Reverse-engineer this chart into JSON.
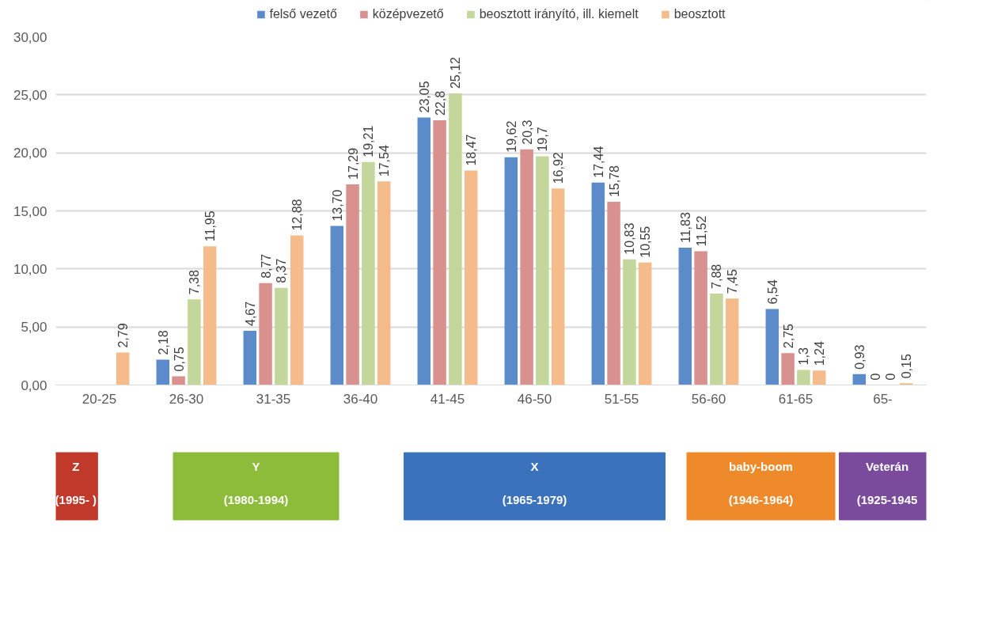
{
  "chart_data": {
    "type": "bar",
    "categories": [
      "20-25",
      "26-30",
      "31-35",
      "36-40",
      "41-45",
      "46-50",
      "51-55",
      "56-60",
      "61-65",
      "65-"
    ],
    "series": [
      {
        "name": "felső vezető",
        "color": "#5b8bc9",
        "values": [
          null,
          2.18,
          4.67,
          13.7,
          23.05,
          19.62,
          17.44,
          11.83,
          6.54,
          0.93
        ],
        "value_labels": [
          null,
          "2,18",
          "4,67",
          "13,70",
          "23,05",
          "19,62",
          "17,44",
          "11,83",
          "6,54",
          "0,93"
        ]
      },
      {
        "name": "középvezető",
        "color": "#d99190",
        "values": [
          null,
          0.75,
          8.77,
          17.29,
          22.8,
          20.3,
          15.78,
          11.52,
          2.75,
          0
        ],
        "value_labels": [
          null,
          "0,75",
          "8,77",
          "17,29",
          "22,8",
          "20,3",
          "15,78",
          "11,52",
          "2,75",
          "0"
        ]
      },
      {
        "name": "beosztott irányító, ill. kiemelt",
        "color": "#c3d69b",
        "values": [
          null,
          7.38,
          8.37,
          19.21,
          25.12,
          19.7,
          10.83,
          7.88,
          1.3,
          0
        ],
        "value_labels": [
          null,
          "7,38",
          "8,37",
          "19,21",
          "25,12",
          "19,7",
          "10,83",
          "7,88",
          "1,3",
          "0"
        ]
      },
      {
        "name": "beosztott",
        "color": "#f6bb8b",
        "values": [
          2.79,
          11.95,
          12.88,
          17.54,
          18.47,
          16.92,
          10.55,
          7.45,
          1.24,
          0.15
        ],
        "value_labels": [
          "2,79",
          "11,95",
          "12,88",
          "17,54",
          "18,47",
          "16,92",
          "10,55",
          "7,45",
          "1,24",
          "0,15"
        ]
      }
    ],
    "ylim": [
      0,
      30
    ],
    "yticks": [
      {
        "value": 0,
        "label": "0,00"
      },
      {
        "value": 5,
        "label": "5,00"
      },
      {
        "value": 10,
        "label": "10,00"
      },
      {
        "value": 15,
        "label": "15,00"
      },
      {
        "value": 20,
        "label": "20,00"
      },
      {
        "value": 25,
        "label": "25,00"
      },
      {
        "value": 30,
        "label": "30,00"
      }
    ],
    "grid": "y",
    "legend": "top",
    "annotations": [
      "Z",
      "(1995- )",
      "Y",
      "(1980-1994)",
      "X",
      "(1965-1979)",
      "baby-boom",
      "(1946-1964)",
      "Veterán",
      "(1925-1945"
    ]
  }
}
